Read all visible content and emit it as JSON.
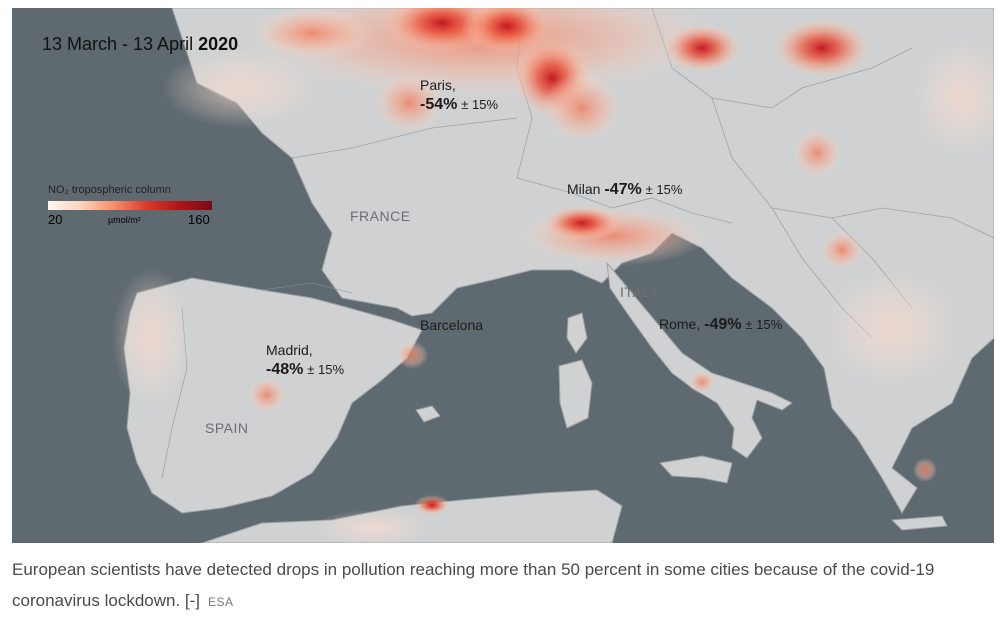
{
  "map": {
    "date_prefix": "13 March - 13 April ",
    "date_year": "2020",
    "legend": {
      "title": "NO₂ tropospheric column",
      "min": "20",
      "unit": "µmol/m²",
      "max": "160"
    },
    "cities": {
      "paris": {
        "name": "Paris,",
        "pct": "-54%",
        "err": "± 15%"
      },
      "milan": {
        "name": "Milan",
        "pct": "-47%",
        "err": "± 15%"
      },
      "rome": {
        "name": "Rome,",
        "pct": "-49%",
        "err": "± 15%"
      },
      "madrid": {
        "name": "Madrid,",
        "pct": "-48%",
        "err": "± 15%"
      },
      "barcelona": {
        "name": "Barcelona"
      }
    },
    "countries": {
      "france": "FRANCE",
      "spain": "SPAIN",
      "italy": "ITALY"
    },
    "colors": {
      "sea": "#5f6a70",
      "land": "#cfd1d2",
      "no2_high": "#b0141b"
    }
  },
  "caption": {
    "text": "European scientists have detected drops in pollution reaching more than 50 percent in some cities because of the covid-19 coronavirus lockdown. [-]",
    "source": "ESA"
  }
}
